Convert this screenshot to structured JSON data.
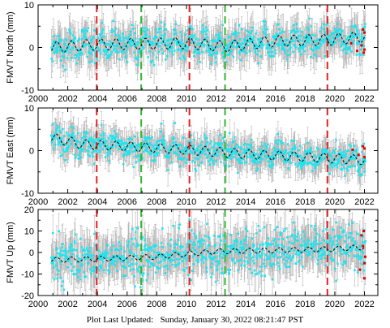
{
  "footer": {
    "label": "Plot Last Updated:",
    "timestamp": "Sunday, January 30, 2022 08:21:47 PST"
  },
  "colors": {
    "data": "#19e6f2",
    "error_bars": "#b4b4b4",
    "model": "#000000",
    "red_points": "#e00000",
    "offset_red": "#e8201c",
    "offset_green": "#2eb82e",
    "frame": "#000000"
  },
  "chart_data": [
    {
      "type": "scatter",
      "ylabel": "FMVT North (mm)",
      "xlim": [
        2000,
        2022.9
      ],
      "ylim": [
        -10,
        10
      ],
      "xticks": [
        "2000",
        "2002",
        "2004",
        "2006",
        "2008",
        "2010",
        "2012",
        "2014",
        "2016",
        "2018",
        "2020",
        "2022"
      ],
      "yticks": [
        "-10",
        "0",
        "10"
      ],
      "data_span": [
        2000.9,
        2022.05
      ],
      "series": [
        {
          "type": "points-with-error-bars",
          "model_trend": [
            [
              2000.9,
              0.0
            ],
            [
              2004.0,
              0.7
            ],
            [
              2010.2,
              1.0
            ],
            [
              2012.6,
              0.2
            ],
            [
              2016.0,
              1.5
            ],
            [
              2019.5,
              1.8
            ],
            [
              2022.0,
              2.5
            ]
          ],
          "seasonal_amplitude": 1.3,
          "noise": 1.8,
          "error": 3.2
        },
        {
          "type": "model-dashed"
        }
      ],
      "offsets": [
        {
          "year": 2003.95,
          "color": "red"
        },
        {
          "year": 2006.95,
          "color": "green"
        },
        {
          "year": 2010.2,
          "color": "red"
        },
        {
          "year": 2012.6,
          "color": "green"
        },
        {
          "year": 2019.5,
          "color": "red"
        }
      ],
      "red_points": [
        [
          2021.1,
          1.0
        ],
        [
          2021.5,
          -0.8
        ],
        [
          2021.9,
          4.2
        ],
        [
          2021.95,
          -1.2
        ],
        [
          2022.0,
          3.5
        ],
        [
          2022.0,
          -0.5
        ],
        [
          2021.8,
          0.5
        ]
      ]
    },
    {
      "type": "scatter",
      "ylabel": "FMVT East (mm)",
      "xlim": [
        2000,
        2022.9
      ],
      "ylim": [
        -10,
        10
      ],
      "xticks": [
        "2000",
        "2002",
        "2004",
        "2006",
        "2008",
        "2010",
        "2012",
        "2014",
        "2016",
        "2018",
        "2020",
        "2022"
      ],
      "yticks": [
        "-10",
        "0",
        "10"
      ],
      "data_span": [
        2000.9,
        2022.05
      ],
      "series": [
        {
          "type": "points-with-error-bars",
          "model_trend": [
            [
              2000.9,
              3.0
            ],
            [
              2003.0,
              1.5
            ],
            [
              2006.0,
              1.0
            ],
            [
              2010.0,
              0.2
            ],
            [
              2014.0,
              -0.8
            ],
            [
              2018.0,
              -1.5
            ],
            [
              2022.0,
              -2.2
            ]
          ],
          "seasonal_amplitude": 1.1,
          "noise": 1.5,
          "error": 2.8
        },
        {
          "type": "model-dashed"
        }
      ],
      "offsets": [
        {
          "year": 2003.95,
          "color": "red"
        },
        {
          "year": 2006.95,
          "color": "green"
        },
        {
          "year": 2010.2,
          "color": "red"
        },
        {
          "year": 2012.6,
          "color": "green"
        },
        {
          "year": 2019.5,
          "color": "red"
        }
      ],
      "red_points": [
        [
          2021.2,
          0.2
        ],
        [
          2021.6,
          -1.0
        ],
        [
          2021.9,
          1.0
        ],
        [
          2022.0,
          0.5
        ],
        [
          2022.0,
          -1.5
        ]
      ]
    },
    {
      "type": "scatter",
      "ylabel": "FMVT Up (mm)",
      "xlim": [
        2000,
        2022.9
      ],
      "ylim": [
        -20,
        20
      ],
      "xticks": [
        "2000",
        "2002",
        "2004",
        "2006",
        "2008",
        "2010",
        "2012",
        "2014",
        "2016",
        "2018",
        "2020",
        "2022"
      ],
      "yticks": [
        "-20",
        "-10",
        "0",
        "10",
        "20"
      ],
      "data_span": [
        2000.9,
        2022.05
      ],
      "series": [
        {
          "type": "points-with-error-bars",
          "model_trend": [
            [
              2000.9,
              -3.5
            ],
            [
              2004.0,
              -3.0
            ],
            [
              2008.0,
              -2.0
            ],
            [
              2012.0,
              0.5
            ],
            [
              2016.0,
              1.0
            ],
            [
              2019.5,
              1.5
            ],
            [
              2022.0,
              2.5
            ]
          ],
          "seasonal_amplitude": 1.2,
          "noise": 5.0,
          "error": 7.5
        },
        {
          "type": "model-dashed"
        }
      ],
      "offsets": [
        {
          "year": 2003.95,
          "color": "red"
        },
        {
          "year": 2006.95,
          "color": "green"
        },
        {
          "year": 2010.2,
          "color": "red"
        },
        {
          "year": 2012.6,
          "color": "green"
        },
        {
          "year": 2019.5,
          "color": "red"
        }
      ],
      "red_points": [
        [
          2021.7,
          -8.0
        ],
        [
          2021.8,
          8.0
        ],
        [
          2021.9,
          3.0
        ],
        [
          2022.0,
          -12.0
        ],
        [
          2022.05,
          -2.0
        ],
        [
          2022.0,
          -5.0
        ],
        [
          2021.95,
          10.0
        ]
      ]
    }
  ]
}
